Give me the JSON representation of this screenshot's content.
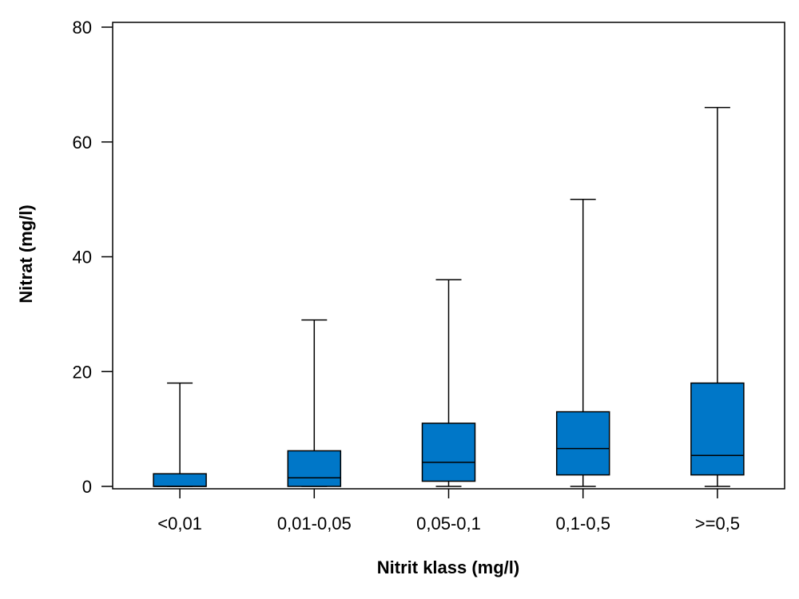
{
  "chart_data": {
    "type": "boxplot",
    "title": "",
    "xlabel": "Nitrit klass (mg/l)",
    "ylabel": "Nitrat (mg/l)",
    "ylim": [
      0,
      80
    ],
    "yticks": [
      0,
      20,
      40,
      60,
      80
    ],
    "categories": [
      "<0,01",
      "0,01-0,05",
      "0,05-0,1",
      "0,1-0,5",
      ">=0,5"
    ],
    "boxes": [
      {
        "min": 0,
        "q1": 0,
        "median": 0,
        "q3": 2.2,
        "max": 18
      },
      {
        "min": 0,
        "q1": 0,
        "median": 1.5,
        "q3": 6.2,
        "max": 29
      },
      {
        "min": 0,
        "q1": 0.9,
        "median": 4.2,
        "q3": 11,
        "max": 36
      },
      {
        "min": 0,
        "q1": 2,
        "median": 6.6,
        "q3": 13,
        "max": 50
      },
      {
        "min": 0,
        "q1": 2,
        "median": 5.4,
        "q3": 18,
        "max": 66
      }
    ],
    "box_color": "#0077c8",
    "grid": false,
    "legend": "none"
  }
}
